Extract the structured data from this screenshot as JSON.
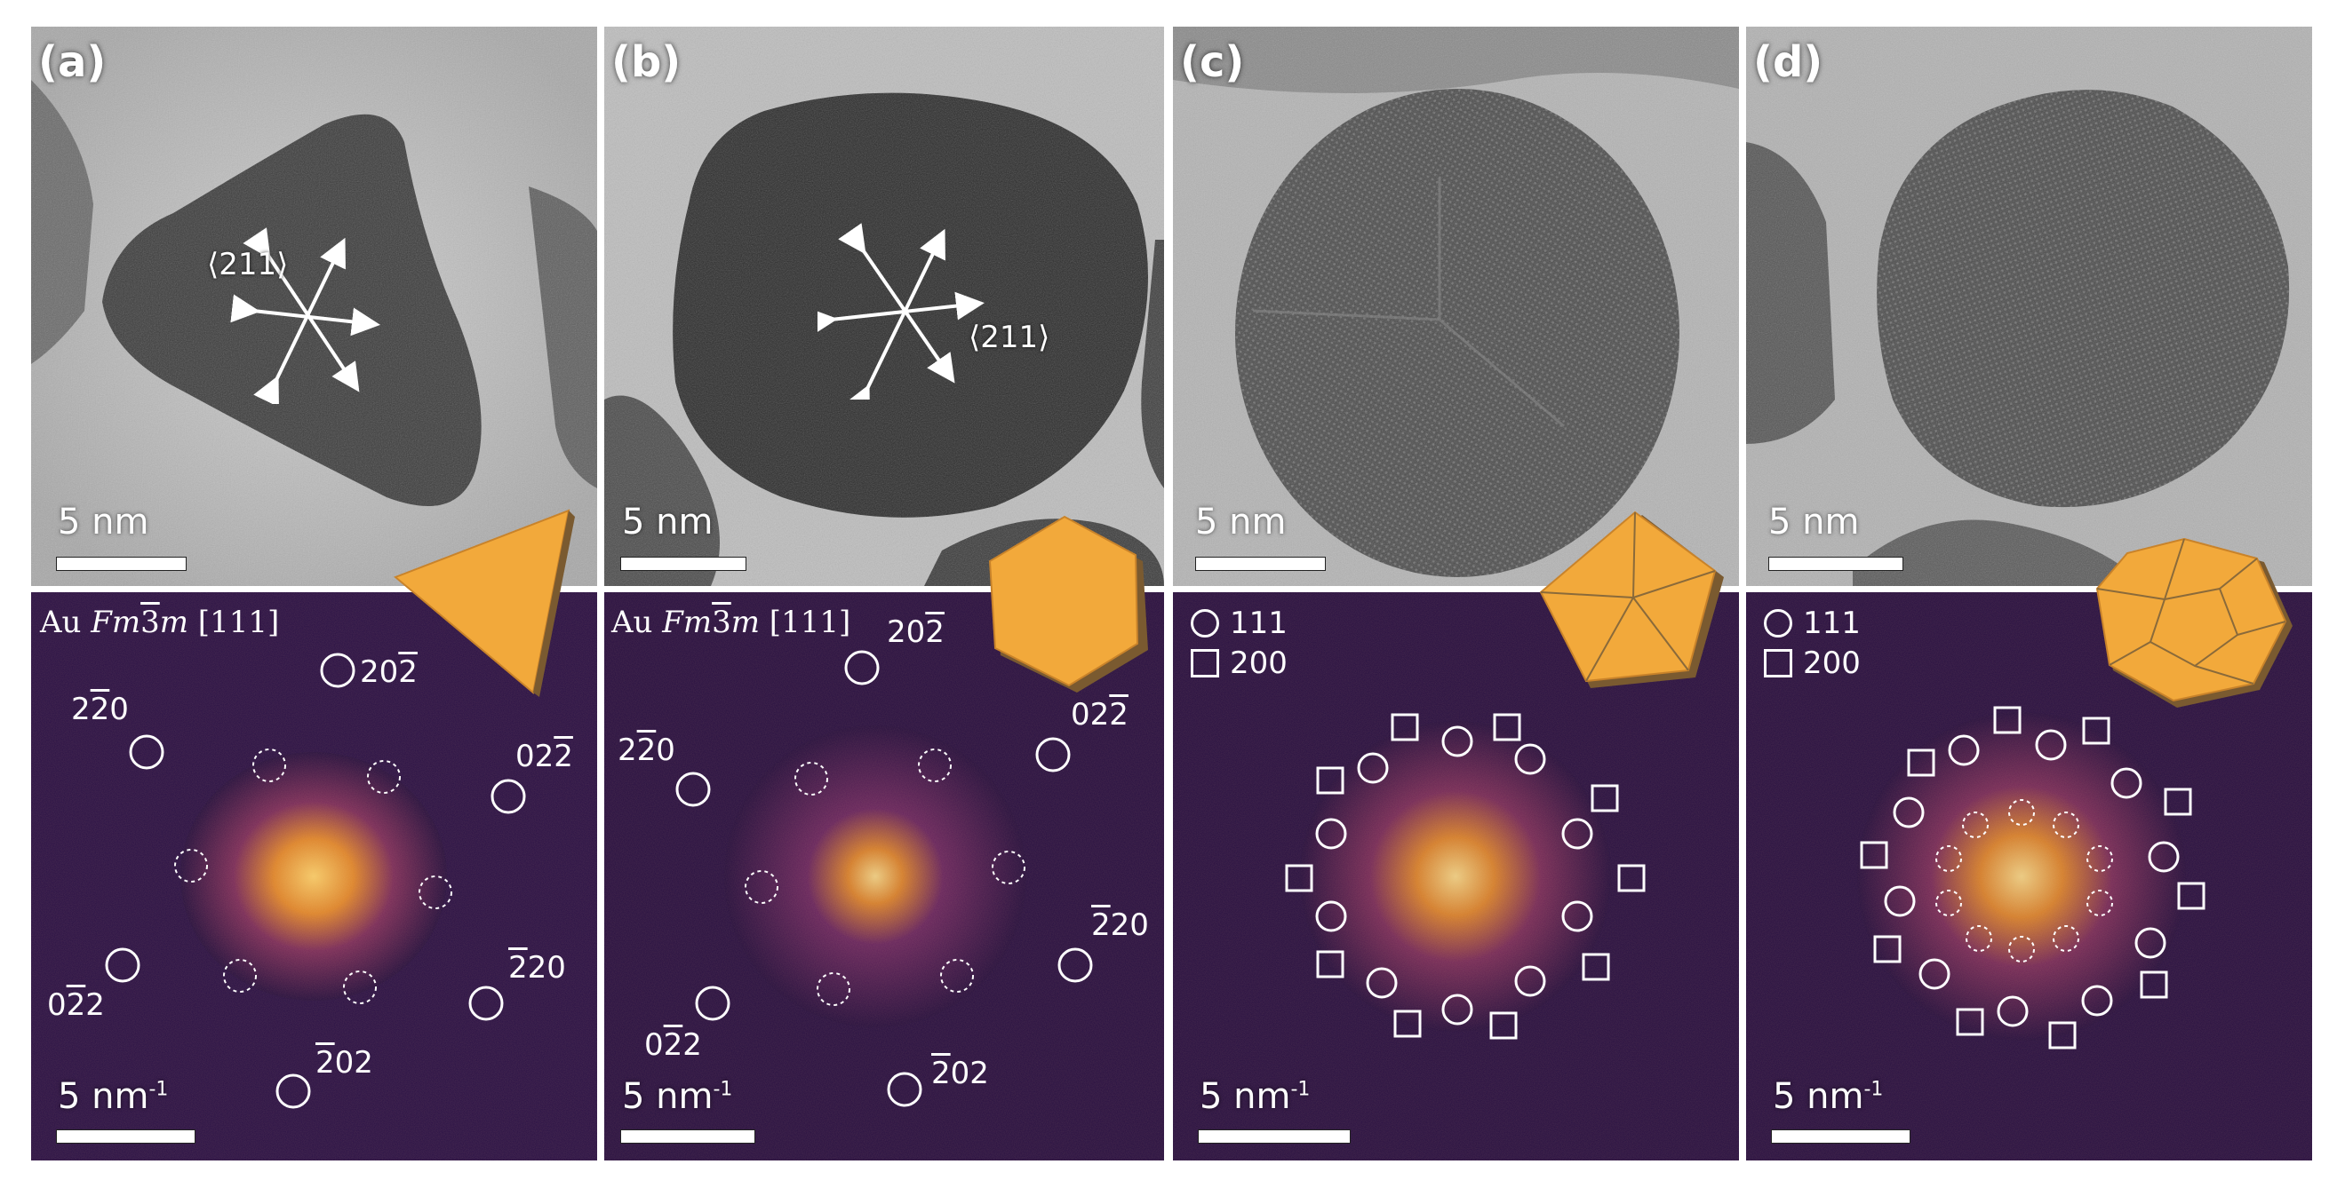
{
  "panels": [
    {
      "id": "a",
      "label": "(a)",
      "tem_scale": "5 nm",
      "fft_scale": "5 nm",
      "fft_scale_sup": "-1",
      "direction": "⟨211⟩",
      "phase": {
        "prefix": "Au ",
        "group_italic": "Fm",
        "group_bar": "3",
        "group_end": "m",
        "zone": " [111]"
      },
      "spots": [
        "20̅2̅",
        "2̅20",
        "02̅2",
        "2̅20",
        "02̅2",
        "2̅02"
      ]
    },
    {
      "id": "b",
      "label": "(b)",
      "tem_scale": "5 nm",
      "fft_scale": "5 nm",
      "fft_scale_sup": "-1",
      "direction": "⟨211⟩",
      "phase": {
        "prefix": "Au ",
        "group_italic": "Fm",
        "group_bar": "3",
        "group_end": "m",
        "zone": " [111]"
      }
    },
    {
      "id": "c",
      "label": "(c)",
      "tem_scale": "5 nm",
      "fft_scale": "5 nm",
      "fft_scale_sup": "-1",
      "legend": [
        {
          "symbol": "circle",
          "text": "111"
        },
        {
          "symbol": "square",
          "text": "200"
        }
      ]
    },
    {
      "id": "d",
      "label": "(d)",
      "tem_scale": "5 nm",
      "fft_scale": "5 nm",
      "fft_scale_sup": "-1",
      "legend": [
        {
          "symbol": "circle",
          "text": "111"
        },
        {
          "symbol": "square",
          "text": "200"
        }
      ]
    }
  ],
  "spot_labels_a": {
    "top": "20",
    "top_bar": "2",
    "left": "2",
    "left_bar": "2",
    "left_end": "0",
    "right": "02",
    "right_bar": "2",
    "bl": "0",
    "bl_bar": "2",
    "bl_end": "2",
    "br_bar": "2",
    "br_end": "20",
    "bottom_bar": "2",
    "bottom_end": "02"
  },
  "colors": {
    "particle": "#f2a93b",
    "particle_edge": "#c9832a",
    "particle_dark": "#8a6a3a",
    "fft_bg": "#1e0b3a",
    "fft_glow": "#f6a623",
    "tem_bg": "#b8b8b8",
    "tem_dark": "#2c2c2c"
  }
}
